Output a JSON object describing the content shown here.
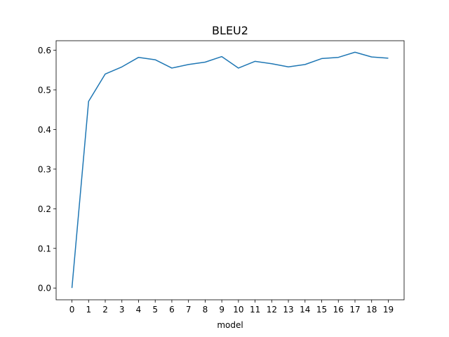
{
  "chart_data": {
    "type": "line",
    "title": "BLEU2",
    "xlabel": "model",
    "ylabel": "",
    "x": [
      0,
      1,
      2,
      3,
      4,
      5,
      6,
      7,
      8,
      9,
      10,
      11,
      12,
      13,
      14,
      15,
      16,
      17,
      18,
      19
    ],
    "x_tick_labels": [
      "0",
      "1",
      "2",
      "3",
      "4",
      "5",
      "6",
      "7",
      "8",
      "9",
      "10",
      "11",
      "12",
      "13",
      "14",
      "15",
      "16",
      "17",
      "18",
      "19"
    ],
    "y_ticks": [
      0.0,
      0.1,
      0.2,
      0.3,
      0.4,
      0.5,
      0.6
    ],
    "y_tick_labels": [
      "0.0",
      "0.1",
      "0.2",
      "0.3",
      "0.4",
      "0.5",
      "0.6"
    ],
    "xlim": [
      -0.95,
      19.95
    ],
    "ylim": [
      -0.0297,
      0.624
    ],
    "grid": false,
    "series": [
      {
        "color": "#1f77b4",
        "values": [
          0.0,
          0.471,
          0.54,
          0.558,
          0.582,
          0.576,
          0.555,
          0.564,
          0.57,
          0.584,
          0.555,
          0.572,
          0.566,
          0.558,
          0.564,
          0.579,
          0.582,
          0.595,
          0.583,
          0.58
        ]
      }
    ]
  }
}
